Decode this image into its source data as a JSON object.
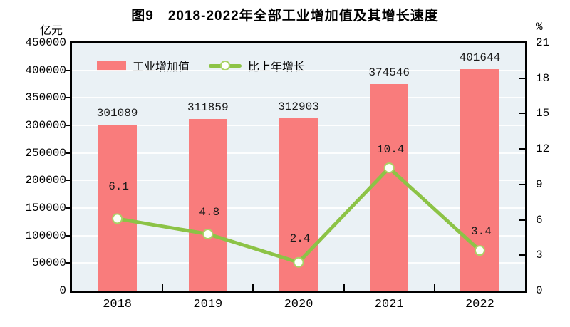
{
  "chart_data": {
    "type": "combo-bar-line",
    "title": "图9　2018-2022年全部工业增加值及其增长速度",
    "categories": [
      "2018",
      "2019",
      "2020",
      "2021",
      "2022"
    ],
    "series": [
      {
        "name": "工业增加值",
        "type": "bar",
        "y_axis": "left",
        "values": [
          301089,
          311859,
          312903,
          374546,
          401644
        ],
        "labels": [
          "301089",
          "311859",
          "312903",
          "374546",
          "401644"
        ],
        "color": "#F97C7C"
      },
      {
        "name": "比上年增长",
        "type": "line",
        "y_axis": "right",
        "values": [
          6.1,
          4.8,
          2.4,
          10.4,
          3.4
        ],
        "labels": [
          "6.1",
          "4.8",
          "2.4",
          "10.4",
          "3.4"
        ],
        "color": "#8CC346",
        "marker": "circle-white"
      }
    ],
    "left_axis": {
      "label": "亿元",
      "min": 0,
      "max": 450000,
      "step": 50000
    },
    "right_axis": {
      "label": "%",
      "min": 0,
      "max": 21,
      "step": 3
    },
    "grid": true,
    "legend_position": "top-inside",
    "plot_bg": "#EAF1F5",
    "gridline_color": "#FFFFFF",
    "axis_color": "#000000"
  }
}
